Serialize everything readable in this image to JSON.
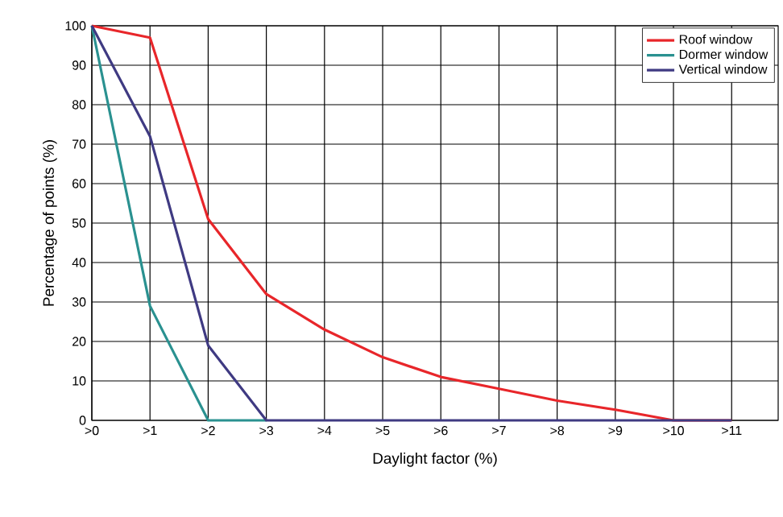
{
  "chart_data": {
    "type": "line",
    "xlabel": "Daylight factor (%)",
    "ylabel": "Percentage of points (%)",
    "ylim": [
      0,
      100
    ],
    "categories": [
      ">0",
      ">1",
      ">2",
      ">3",
      ">4",
      ">5",
      ">6",
      ">7",
      ">8",
      ">9",
      ">10",
      ">11"
    ],
    "yticks": [
      0,
      10,
      20,
      30,
      40,
      50,
      60,
      70,
      80,
      90,
      100
    ],
    "grid": true,
    "legend": "top right",
    "marker": "none",
    "line_style": "solid",
    "series": [
      {
        "name": "Roof window",
        "color": "#e8262a",
        "values": [
          100,
          97,
          51,
          32,
          23,
          16,
          11,
          8,
          5,
          2.7,
          0,
          0
        ]
      },
      {
        "name": "Dormer window",
        "color": "#2a9190",
        "values": [
          100,
          29,
          0,
          0,
          null,
          null,
          null,
          null,
          null,
          null,
          null,
          null
        ]
      },
      {
        "name": "Vertical window",
        "color": "#3f3a82",
        "values": [
          100,
          72,
          19,
          0,
          0,
          0,
          0,
          0,
          0,
          0,
          0,
          0
        ]
      }
    ]
  }
}
